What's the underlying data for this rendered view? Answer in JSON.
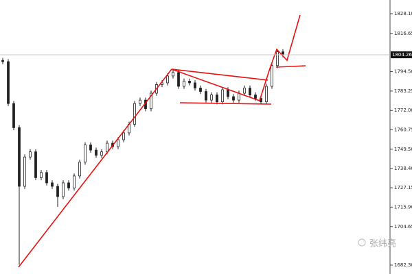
{
  "chart_data": {
    "type": "candlestick",
    "color": "#222222",
    "current_price": 1804.26,
    "watermark": "张纬亮",
    "ylim": [
      1677.14,
      1836.05
    ],
    "yticks": [
      {
        "value": 1682.3,
        "label": "1682.30"
      },
      1704.65,
      {
        "value": 1715.9,
        "label": "1715.90"
      },
      1727.15,
      {
        "value": 1738.4,
        "label": "1738.40"
      },
      {
        "value": 1749.5,
        "label": "1749.50"
      },
      1760.75,
      {
        "value": 1772.0,
        "label": "1772.00"
      },
      1783.25,
      {
        "value": 1794.5,
        "label": "1794.50"
      },
      1816.65,
      {
        "value": 1828.1,
        "label": "1828.10"
      }
    ],
    "open": [
      1801.0,
      1800.3,
      1776.0,
      1762.0,
      1728.0,
      1745.0,
      1748.0,
      1733.0,
      1736.0,
      1730.0,
      1728.0,
      1722.0,
      1730.0,
      1727.0,
      1734.0,
      1742.0,
      1752.0,
      1749.0,
      1746.0,
      1748.0,
      1753.0,
      1751.0,
      1755.0,
      1759.0,
      1764.0,
      1776.0,
      1778.0,
      1773.0,
      1782.0,
      1787.0,
      1788.0,
      1792.0,
      1794.0,
      1786.0,
      1789.0,
      1788.0,
      1785.0,
      1783.0,
      1778.0,
      1781.0,
      1777.0,
      1784.0,
      1780.0,
      1778.0,
      1782.0,
      1785.0,
      1781.0,
      1779.0,
      1777.0,
      1786.0,
      1798.0,
      1806.0
    ],
    "high": [
      1802.5,
      1801.8,
      1777.5,
      1763.5,
      1746.5,
      1749.5,
      1749.5,
      1737.5,
      1737.5,
      1731.5,
      1729.5,
      1731.5,
      1731.5,
      1735.5,
      1743.5,
      1753.5,
      1753.5,
      1750.5,
      1749.5,
      1754.5,
      1754.5,
      1756.5,
      1760.5,
      1765.5,
      1777.5,
      1779.5,
      1779.5,
      1783.5,
      1788.5,
      1789.5,
      1793.5,
      1795.5,
      1795.5,
      1790.5,
      1790.5,
      1789.5,
      1786.5,
      1784.5,
      1782.5,
      1782.5,
      1785.5,
      1785.5,
      1781.5,
      1783.5,
      1786.5,
      1786.5,
      1782.5,
      1780.5,
      1787.5,
      1799.5,
      1807.5,
      1807.5
    ],
    "low": [
      1798.8,
      1774.5,
      1760.5,
      1682.5,
      1726.5,
      1743.5,
      1731.5,
      1731.5,
      1728.5,
      1726.5,
      1716.0,
      1720.5,
      1725.5,
      1725.5,
      1732.5,
      1740.5,
      1747.5,
      1744.5,
      1744.5,
      1746.5,
      1749.5,
      1749.5,
      1753.5,
      1757.5,
      1762.5,
      1774.5,
      1771.5,
      1771.5,
      1780.5,
      1785.5,
      1786.5,
      1790.5,
      1784.5,
      1784.5,
      1786.5,
      1783.5,
      1781.5,
      1776.5,
      1776.5,
      1775.5,
      1775.5,
      1778.5,
      1776.5,
      1776.5,
      1780.5,
      1779.5,
      1777.5,
      1775.5,
      1775.5,
      1784.5,
      1796.5,
      1802.76
    ],
    "close": [
      1800.3,
      1776.0,
      1762.0,
      1728.0,
      1745.0,
      1748.0,
      1733.0,
      1736.0,
      1730.0,
      1728.0,
      1722.0,
      1730.0,
      1727.0,
      1734.0,
      1742.0,
      1752.0,
      1749.0,
      1746.0,
      1748.0,
      1753.0,
      1751.0,
      1755.0,
      1759.0,
      1764.0,
      1776.0,
      1778.0,
      1773.0,
      1782.0,
      1787.0,
      1788.0,
      1792.0,
      1794.0,
      1786.0,
      1789.0,
      1788.0,
      1785.0,
      1783.0,
      1778.0,
      1781.0,
      1777.0,
      1784.0,
      1780.0,
      1778.0,
      1782.0,
      1785.0,
      1781.0,
      1779.0,
      1777.0,
      1786.0,
      1798.0,
      1806.0,
      1804.26
    ]
  }
}
